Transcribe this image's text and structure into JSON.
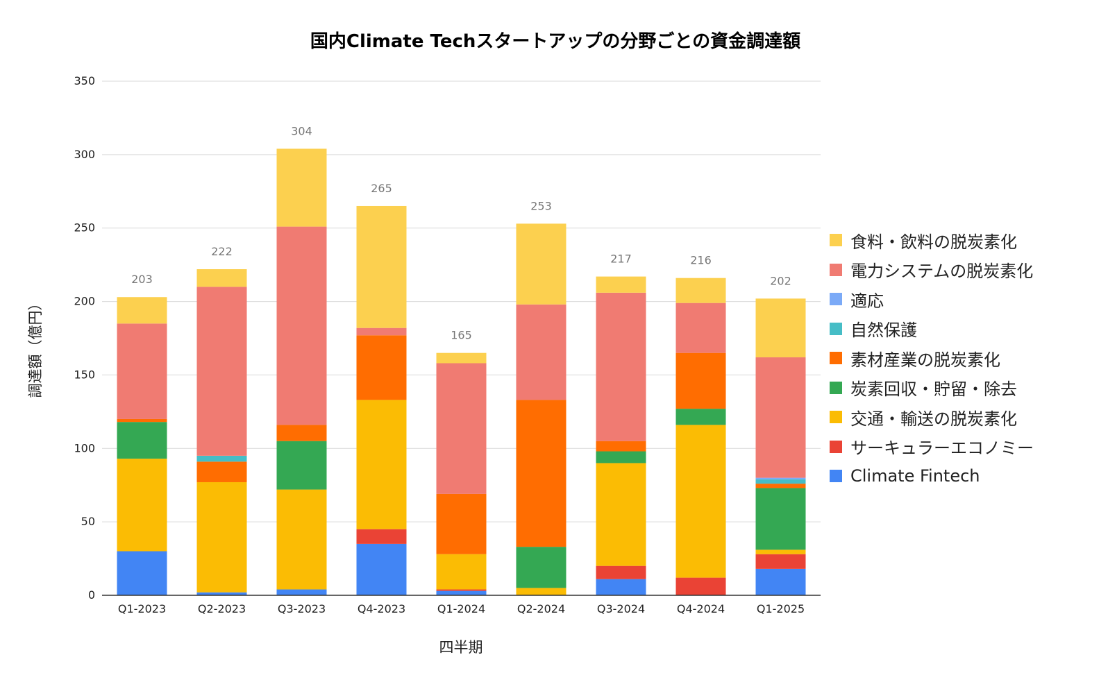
{
  "chart_data": {
    "type": "bar",
    "stacked": true,
    "title": "国内Climate Techスタートアップの分野ごとの資金調達額",
    "xlabel": "四半期",
    "ylabel": "調達額（億円）",
    "ylim": [
      0,
      350
    ],
    "yticks": [
      0,
      50,
      100,
      150,
      200,
      250,
      300,
      350
    ],
    "grid": true,
    "legend_position": "right",
    "categories": [
      "Q1-2023",
      "Q2-2023",
      "Q3-2023",
      "Q4-2023",
      "Q1-2024",
      "Q2-2024",
      "Q3-2024",
      "Q4-2024",
      "Q1-2025"
    ],
    "totals": [
      203,
      222,
      304,
      265,
      165,
      253,
      217,
      216,
      202
    ],
    "series": [
      {
        "name": "Climate Fintech",
        "color": "#4285F4",
        "values": [
          30,
          2,
          4,
          35,
          3,
          0,
          11,
          0,
          18
        ]
      },
      {
        "name": "サーキュラーエコノミー",
        "color": "#EA4335",
        "values": [
          0,
          0,
          0,
          10,
          1,
          0,
          9,
          12,
          10
        ]
      },
      {
        "name": "交通・輸送の脱炭素化",
        "color": "#FBBC04",
        "values": [
          63,
          75,
          68,
          88,
          24,
          5,
          70,
          104,
          3
        ]
      },
      {
        "name": "炭素回収・貯留・除去",
        "color": "#34A853",
        "values": [
          25,
          0,
          33,
          0,
          0,
          28,
          8,
          11,
          42
        ]
      },
      {
        "name": "素材産業の脱炭素化",
        "color": "#FF6D01",
        "values": [
          2,
          14,
          11,
          44,
          41,
          100,
          7,
          38,
          3
        ]
      },
      {
        "name": "自然保護",
        "color": "#46BDC6",
        "values": [
          0,
          4,
          0,
          0,
          0,
          0,
          0,
          0,
          3
        ]
      },
      {
        "name": "適応",
        "color": "#7BAAF7",
        "values": [
          0,
          0,
          0,
          0,
          0,
          0,
          0,
          0,
          1
        ]
      },
      {
        "name": "電力システムの脱炭素化",
        "color": "#F07B72",
        "values": [
          65,
          115,
          135,
          5,
          89,
          65,
          101,
          34,
          82
        ]
      },
      {
        "name": "食料・飲料の脱炭素化",
        "color": "#FCD04F",
        "values": [
          18,
          12,
          53,
          83,
          7,
          55,
          11,
          17,
          40
        ]
      }
    ]
  }
}
